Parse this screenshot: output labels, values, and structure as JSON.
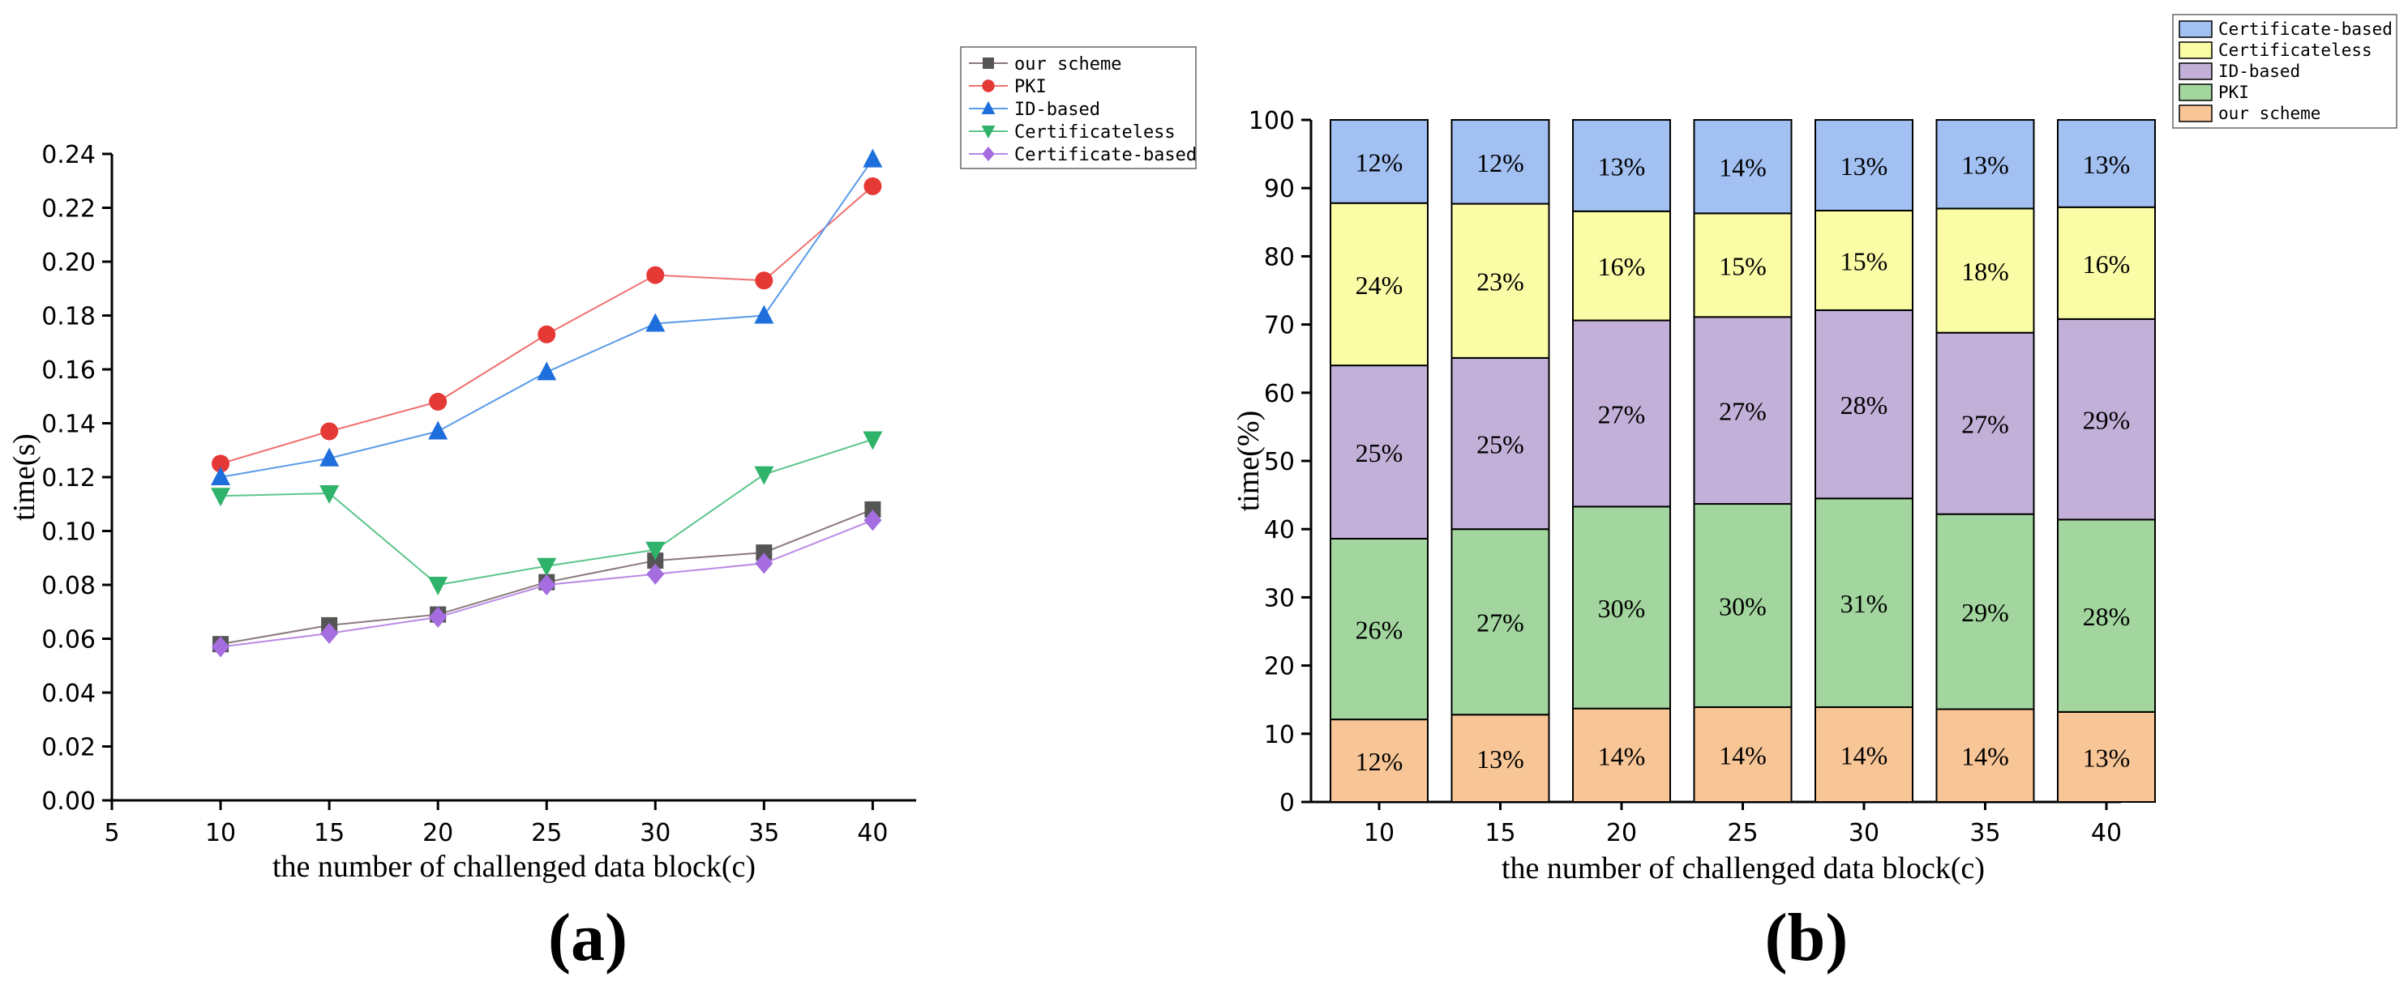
{
  "panels": [
    {
      "label": "(a)",
      "chart_data": {
        "type": "line",
        "title": "",
        "xlabel": "the number of challenged data block(c)",
        "ylabel": "time(s)",
        "x": [
          10,
          15,
          20,
          25,
          30,
          35,
          40
        ],
        "xlim": [
          5,
          42
        ],
        "ylim": [
          0,
          0.24
        ],
        "xticks": [
          "5",
          "10",
          "15",
          "20",
          "25",
          "30",
          "35",
          "40"
        ],
        "yticks": [
          "0.00",
          "0.02",
          "0.04",
          "0.06",
          "0.08",
          "0.10",
          "0.12",
          "0.14",
          "0.16",
          "0.18",
          "0.20",
          "0.22",
          "0.24"
        ],
        "grid": false,
        "legend_position": "top-right",
        "series": [
          {
            "name": "our scheme",
            "marker": "square",
            "color": "#555555",
            "line_color": "#8a7a7a",
            "values": [
              0.058,
              0.065,
              0.069,
              0.081,
              0.089,
              0.092,
              0.108
            ]
          },
          {
            "name": "PKI",
            "marker": "circle",
            "color": "#e53935",
            "line_color": "#f07070",
            "values": [
              0.125,
              0.137,
              0.148,
              0.173,
              0.195,
              0.193,
              0.228
            ]
          },
          {
            "name": "ID-based",
            "marker": "triangle-up",
            "color": "#1e6fdc",
            "line_color": "#5a9be8",
            "values": [
              0.12,
              0.127,
              0.137,
              0.159,
              0.177,
              0.18,
              0.238
            ]
          },
          {
            "name": "Certificateless",
            "marker": "triangle-down",
            "color": "#2fb36b",
            "line_color": "#5cc58a",
            "values": [
              0.113,
              0.114,
              0.08,
              0.087,
              0.093,
              0.121,
              0.134
            ]
          },
          {
            "name": "Certificate-based",
            "marker": "diamond",
            "color": "#a56de0",
            "line_color": "#b98ae6",
            "values": [
              0.057,
              0.062,
              0.068,
              0.08,
              0.084,
              0.088,
              0.104
            ]
          }
        ]
      }
    },
    {
      "label": "(b)",
      "chart_data": {
        "type": "bar",
        "stacked": true,
        "title": "",
        "xlabel": "the number of challenged data block(c)",
        "ylabel": "time(%)",
        "categories": [
          "10",
          "15",
          "20",
          "25",
          "30",
          "35",
          "40"
        ],
        "ylim": [
          0,
          100
        ],
        "yticks": [
          "0",
          "10",
          "20",
          "30",
          "40",
          "50",
          "60",
          "70",
          "80",
          "90",
          "100"
        ],
        "grid": false,
        "legend_position": "top-right",
        "legend_order": [
          "Certificate-based",
          "Certificateless",
          "ID-based",
          "PKI",
          "our scheme"
        ],
        "series": [
          {
            "name": "our scheme",
            "color": "#f8c596",
            "values": [
              12.1,
              12.8,
              13.7,
              13.9,
              13.9,
              13.6,
              13.2
            ],
            "labels": [
              "12%",
              "13%",
              "14%",
              "14%",
              "14%",
              "14%",
              "13%"
            ]
          },
          {
            "name": "PKI",
            "color": "#a2d69e",
            "values": [
              26.5,
              27.2,
              29.6,
              29.8,
              30.6,
              28.6,
              28.2
            ],
            "labels": [
              "26%",
              "27%",
              "30%",
              "30%",
              "31%",
              "29%",
              "28%"
            ]
          },
          {
            "name": "ID-based",
            "color": "#c2b0d8",
            "values": [
              25.4,
              25.1,
              27.3,
              27.4,
              27.6,
              26.6,
              29.4
            ],
            "labels": [
              "25%",
              "25%",
              "27%",
              "27%",
              "28%",
              "27%",
              "29%"
            ]
          },
          {
            "name": "Certificateless",
            "color": "#fbfca6",
            "values": [
              23.8,
              22.6,
              16.0,
              15.2,
              14.6,
              18.2,
              16.4
            ],
            "labels": [
              "24%",
              "23%",
              "16%",
              "15%",
              "15%",
              "18%",
              "16%"
            ]
          },
          {
            "name": "Certificate-based",
            "color": "#a2c0f2",
            "values": [
              12.2,
              12.3,
              13.4,
              13.7,
              13.3,
              13.0,
              12.8
            ],
            "labels": [
              "12%",
              "12%",
              "13%",
              "14%",
              "13%",
              "13%",
              "13%"
            ]
          }
        ]
      }
    }
  ]
}
